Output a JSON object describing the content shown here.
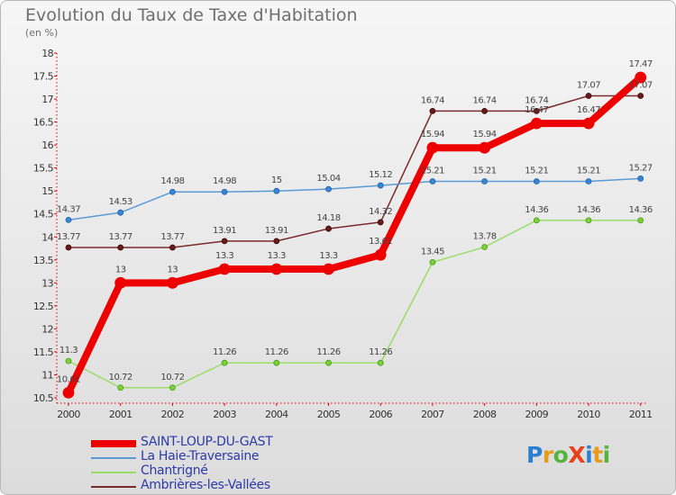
{
  "title": "Evolution du Taux de Taxe d'Habitation",
  "subtitle": "(en %)",
  "logo": {
    "text": "ProXiti",
    "letters": [
      "P",
      "r",
      "o",
      "X",
      "i",
      "t",
      "i"
    ],
    "colors": [
      "#2a7fd4",
      "#e89a1c",
      "#53b53b",
      "#e8401c",
      "#2a7fd4",
      "#e89a1c",
      "#53b53b"
    ]
  },
  "chart_data": {
    "type": "line",
    "title": "Evolution du Taux de Taxe d'Habitation",
    "subtitle": "(en %)",
    "x": [
      "2000",
      "2001",
      "2002",
      "2003",
      "2004",
      "2005",
      "2006",
      "2007",
      "2008",
      "2009",
      "2010",
      "2011"
    ],
    "ylim": [
      10.5,
      18
    ],
    "yticks": [
      "10.5",
      "11",
      "11.5",
      "12",
      "12.5",
      "13",
      "13.5",
      "14",
      "14.5",
      "15",
      "15.5",
      "16",
      "16.5",
      "17",
      "17.5",
      "18"
    ],
    "grid": false,
    "legend_position": "bottom-left",
    "series": [
      {
        "name": "SAINT-LOUP-DU-GAST",
        "color": "#ee0000",
        "values": [
          10.61,
          13,
          13,
          13.3,
          13.3,
          13.3,
          13.61,
          15.94,
          15.94,
          16.47,
          16.47,
          17.47
        ],
        "labels": [
          "10.61",
          "13",
          "13",
          "13.3",
          "13.3",
          "13.3",
          "13.61",
          "15.94",
          "15.94",
          "16.47",
          "16.47",
          "17.47"
        ]
      },
      {
        "name": "La Haie-Traversaine",
        "color": "#5b9bd5",
        "values": [
          14.37,
          14.53,
          14.98,
          14.98,
          15,
          15.04,
          15.12,
          15.21,
          15.21,
          15.21,
          15.21,
          15.27
        ],
        "labels": [
          "14.37",
          "14.53",
          "14.98",
          "14.98",
          "15",
          "15.04",
          "15.12",
          "15.21",
          "15.21",
          "15.21",
          "15.21",
          "15.27"
        ]
      },
      {
        "name": "Chantrigné",
        "color": "#99dd66",
        "values": [
          11.3,
          10.72,
          10.72,
          11.26,
          11.26,
          11.26,
          11.26,
          13.45,
          13.78,
          14.36,
          14.36,
          14.36
        ],
        "labels": [
          "11.3",
          "10.72",
          "10.72",
          "11.26",
          "11.26",
          "11.26",
          "11.26",
          "13.45",
          "13.78",
          "14.36",
          "14.36",
          "14.36"
        ]
      },
      {
        "name": "Ambrières-les-Vallées",
        "color": "#7a2b2b",
        "values": [
          13.77,
          13.77,
          13.77,
          13.91,
          13.91,
          14.18,
          14.32,
          16.74,
          16.74,
          16.74,
          17.07,
          17.07
        ],
        "labels": [
          "13.77",
          "13.77",
          "13.77",
          "13.91",
          "13.91",
          "14.18",
          "14.32",
          "16.74",
          "16.74",
          "16.74",
          "17.07",
          "17.07"
        ]
      }
    ]
  }
}
